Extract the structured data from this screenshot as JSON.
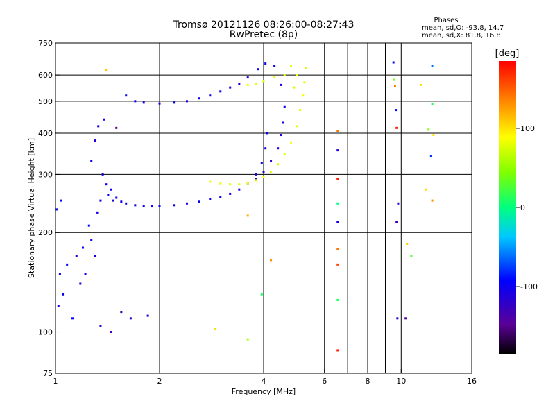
{
  "header": {
    "title_line1": "Tromsø 20121126 08:26:00-08:27:43",
    "title_line2": "RwPretec (8p)",
    "stats_title": "Phases",
    "stats_o": "mean, sd,O: -93.8, 14.7",
    "stats_x": "mean, sd,X:  81.8, 16.8"
  },
  "colorbar": {
    "unit": "deg",
    "ticks": [
      {
        "value": 100,
        "label": "100"
      },
      {
        "value": 0,
        "label": "0"
      },
      {
        "value": -100,
        "label": "-100"
      }
    ],
    "range": [
      -185,
      185
    ]
  },
  "chart_data": {
    "type": "scatter",
    "title": "Tromsø 20121126 08:26:00-08:27:43",
    "subtitle": "RwPretec (8p)",
    "xlabel": "Frequency [MHz]",
    "ylabel": "Stationary phase Virtual Height [km]",
    "x_scale": "log",
    "y_scale": "log",
    "xlim": [
      1,
      16
    ],
    "ylim": [
      75,
      750
    ],
    "x_ticks": [
      {
        "value": 1,
        "label": "1"
      },
      {
        "value": 2,
        "label": "2"
      },
      {
        "value": 4,
        "label": "4"
      },
      {
        "value": 6,
        "label": "6"
      },
      {
        "value": 8,
        "label": "8"
      },
      {
        "value": 10,
        "label": "10"
      },
      {
        "value": 16,
        "label": "16"
      }
    ],
    "x_minor": [
      7,
      9
    ],
    "y_ticks": [
      {
        "value": 75,
        "label": "75"
      },
      {
        "value": 100,
        "label": "100"
      },
      {
        "value": 200,
        "label": "200"
      },
      {
        "value": 300,
        "label": "300"
      },
      {
        "value": 400,
        "label": "400"
      },
      {
        "value": 500,
        "label": "500"
      },
      {
        "value": 600,
        "label": "600"
      },
      {
        "value": 750,
        "label": "750"
      }
    ],
    "x_grid": [
      1,
      2,
      4,
      6,
      8,
      10,
      16
    ],
    "y_grid": [
      100,
      200,
      300,
      400,
      500,
      600
    ],
    "grid": true,
    "color_scale": "phase (deg)",
    "series": [
      {
        "points": [
          [
            1.01,
            235,
            -100
          ],
          [
            1.04,
            250,
            -90
          ],
          [
            1.03,
            150,
            -100
          ],
          [
            1.08,
            160,
            -95
          ],
          [
            1.02,
            120,
            -105
          ],
          [
            1.05,
            130,
            -100
          ],
          [
            1.12,
            110,
            -95
          ],
          [
            1.15,
            170,
            -100
          ],
          [
            1.18,
            140,
            -110
          ],
          [
            1.2,
            180,
            -100
          ],
          [
            1.22,
            150,
            -105
          ],
          [
            1.25,
            210,
            -100
          ],
          [
            1.27,
            190,
            -95
          ],
          [
            1.3,
            170,
            -100
          ],
          [
            1.32,
            230,
            -105
          ],
          [
            1.35,
            250,
            -100
          ],
          [
            1.37,
            300,
            -105
          ],
          [
            1.4,
            280,
            -100
          ],
          [
            1.42,
            260,
            -95
          ],
          [
            1.45,
            270,
            -100
          ],
          [
            1.47,
            250,
            -110
          ],
          [
            1.5,
            255,
            -100
          ],
          [
            1.55,
            248,
            -105
          ],
          [
            1.6,
            245,
            -100
          ],
          [
            1.7,
            242,
            -105
          ],
          [
            1.8,
            240,
            -100
          ],
          [
            1.9,
            240,
            -95
          ],
          [
            2.0,
            241,
            -100
          ],
          [
            2.2,
            242,
            -100
          ],
          [
            2.4,
            245,
            -105
          ],
          [
            2.6,
            248,
            -100
          ],
          [
            2.8,
            252,
            -100
          ],
          [
            3.0,
            256,
            -100
          ],
          [
            3.2,
            262,
            -105
          ],
          [
            3.4,
            270,
            -110
          ],
          [
            3.6,
            282,
            -120
          ],
          [
            3.8,
            300,
            -110
          ],
          [
            3.95,
            325,
            -100
          ],
          [
            4.05,
            360,
            -100
          ],
          [
            4.1,
            400,
            -95
          ],
          [
            1.27,
            330,
            -100
          ],
          [
            1.3,
            380,
            -110
          ],
          [
            1.33,
            420,
            -105
          ],
          [
            1.38,
            440,
            -100
          ],
          [
            1.6,
            520,
            -100
          ],
          [
            1.7,
            500,
            -100
          ],
          [
            1.8,
            495,
            -105
          ],
          [
            2.0,
            492,
            -100
          ],
          [
            2.2,
            495,
            -100
          ],
          [
            2.4,
            500,
            -105
          ],
          [
            2.6,
            510,
            -100
          ],
          [
            2.8,
            520,
            -100
          ],
          [
            3.0,
            535,
            -100
          ],
          [
            3.2,
            550,
            -110
          ],
          [
            3.4,
            565,
            -120
          ],
          [
            3.6,
            590,
            -110
          ],
          [
            3.85,
            625,
            -100
          ],
          [
            4.05,
            650,
            -100
          ],
          [
            4.3,
            640,
            -100
          ],
          [
            4.5,
            560,
            -105
          ],
          [
            4.6,
            480,
            -100
          ],
          [
            4.55,
            430,
            -100
          ],
          [
            4.5,
            395,
            -105
          ],
          [
            4.4,
            360,
            -110
          ],
          [
            4.2,
            330,
            -120
          ],
          [
            4.0,
            305,
            -120
          ],
          [
            3.8,
            290,
            -130
          ],
          [
            1.55,
            115,
            -130
          ],
          [
            1.65,
            110,
            -120
          ],
          [
            1.85,
            112,
            -110
          ],
          [
            1.45,
            100,
            -130
          ],
          [
            1.35,
            104,
            -125
          ]
        ]
      },
      {
        "points": [
          [
            2.8,
            285,
            80
          ],
          [
            3.0,
            282,
            85
          ],
          [
            3.2,
            280,
            75
          ],
          [
            3.4,
            280,
            80
          ],
          [
            3.6,
            282,
            85
          ],
          [
            3.8,
            288,
            80
          ],
          [
            4.0,
            295,
            85
          ],
          [
            4.2,
            305,
            80
          ],
          [
            4.4,
            322,
            75
          ],
          [
            4.6,
            345,
            80
          ],
          [
            4.8,
            375,
            85
          ],
          [
            5.0,
            420,
            80
          ],
          [
            5.1,
            470,
            80
          ],
          [
            5.2,
            520,
            85
          ],
          [
            5.25,
            570,
            80
          ],
          [
            5.3,
            630,
            80
          ],
          [
            4.6,
            600,
            85
          ],
          [
            4.3,
            590,
            80
          ],
          [
            4.0,
            575,
            75
          ],
          [
            3.8,
            565,
            80
          ],
          [
            3.6,
            560,
            85
          ],
          [
            4.8,
            640,
            80
          ],
          [
            5.0,
            600,
            85
          ],
          [
            4.9,
            550,
            75
          ]
        ]
      },
      {
        "points": [
          [
            1.4,
            620,
            110
          ],
          [
            1.5,
            415,
            -150
          ],
          [
            6.55,
            405,
            140
          ],
          [
            6.55,
            355,
            -110
          ],
          [
            6.55,
            290,
            175
          ],
          [
            6.55,
            245,
            0
          ],
          [
            6.55,
            215,
            -105
          ],
          [
            6.55,
            178,
            140
          ],
          [
            6.55,
            160,
            160
          ],
          [
            6.55,
            125,
            10
          ],
          [
            6.55,
            88,
            175
          ],
          [
            9.5,
            655,
            -90
          ],
          [
            9.55,
            580,
            40
          ],
          [
            9.6,
            555,
            140
          ],
          [
            9.65,
            470,
            -90
          ],
          [
            9.7,
            415,
            170
          ],
          [
            9.8,
            245,
            -110
          ],
          [
            9.7,
            215,
            -130
          ],
          [
            9.75,
            110,
            -120
          ],
          [
            10.4,
            185,
            110
          ],
          [
            10.7,
            170,
            30
          ],
          [
            11.4,
            560,
            100
          ],
          [
            12.3,
            640,
            -60
          ],
          [
            12.3,
            490,
            10
          ],
          [
            12.4,
            395,
            100
          ],
          [
            12.2,
            340,
            -80
          ],
          [
            12.3,
            250,
            130
          ],
          [
            12.0,
            410,
            40
          ],
          [
            11.8,
            270,
            100
          ],
          [
            10.3,
            110,
            -140
          ],
          [
            3.6,
            225,
            120
          ],
          [
            3.6,
            95,
            60
          ],
          [
            3.95,
            130,
            10
          ],
          [
            4.2,
            165,
            130
          ],
          [
            2.9,
            102,
            100
          ]
        ]
      }
    ]
  }
}
